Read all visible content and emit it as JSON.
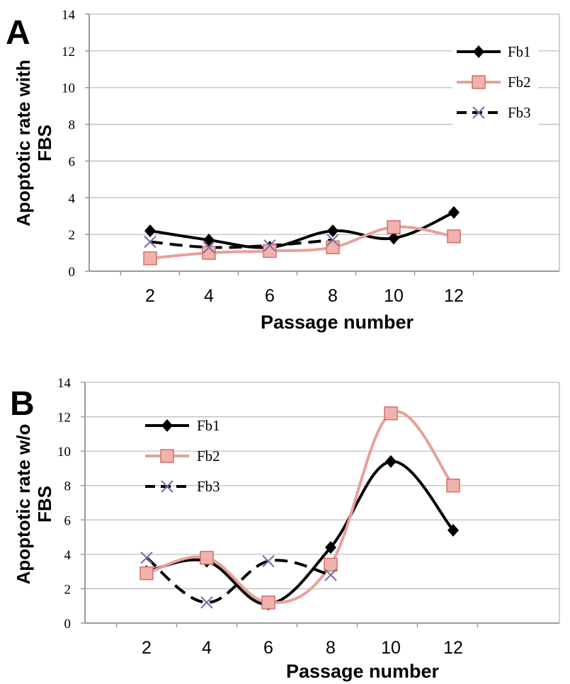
{
  "chart_data": [
    {
      "panel": "A",
      "type": "line",
      "xlabel": "Passage number",
      "ylabel_lines": [
        "Apoptotic rate with",
        "FBS"
      ],
      "ylim": [
        0,
        14
      ],
      "yticks": [
        0,
        2,
        4,
        6,
        8,
        10,
        12,
        14
      ],
      "categories": [
        "2",
        "4",
        "6",
        "8",
        "10",
        "12"
      ],
      "grid": true,
      "legend_position": "top-right",
      "series": [
        {
          "name": "Fb1",
          "color": "#000000",
          "dash": "solid",
          "marker": "diamond",
          "values": [
            2.2,
            1.7,
            1.3,
            2.2,
            1.8,
            3.2
          ]
        },
        {
          "name": "Fb2",
          "color": "#e8a09a",
          "dash": "solid",
          "marker": "square",
          "values": [
            0.7,
            1.0,
            1.1,
            1.3,
            2.4,
            1.9
          ]
        },
        {
          "name": "Fb3",
          "color": "#000000",
          "dash": "dashed",
          "marker": "x",
          "values": [
            1.6,
            1.3,
            1.4,
            1.7,
            null,
            null
          ]
        }
      ]
    },
    {
      "panel": "B",
      "type": "line",
      "xlabel": "Passage number",
      "ylabel_lines": [
        "Apoptotic rate w/o",
        "FBS"
      ],
      "ylim": [
        0,
        14
      ],
      "yticks": [
        0,
        2,
        4,
        6,
        8,
        10,
        12,
        14
      ],
      "categories": [
        "2",
        "4",
        "6",
        "8",
        "10",
        "12"
      ],
      "grid": true,
      "legend_position": "top-left",
      "series": [
        {
          "name": "Fb1",
          "color": "#000000",
          "dash": "solid",
          "marker": "diamond",
          "values": [
            3.0,
            3.6,
            1.1,
            4.4,
            9.4,
            5.4
          ]
        },
        {
          "name": "Fb2",
          "color": "#e8a09a",
          "dash": "solid",
          "marker": "square",
          "values": [
            2.9,
            3.8,
            1.2,
            3.4,
            12.2,
            8.0
          ]
        },
        {
          "name": "Fb3",
          "color": "#000000",
          "dash": "dashed",
          "marker": "x",
          "values": [
            3.8,
            1.2,
            3.6,
            2.8,
            null,
            null
          ]
        }
      ]
    }
  ]
}
